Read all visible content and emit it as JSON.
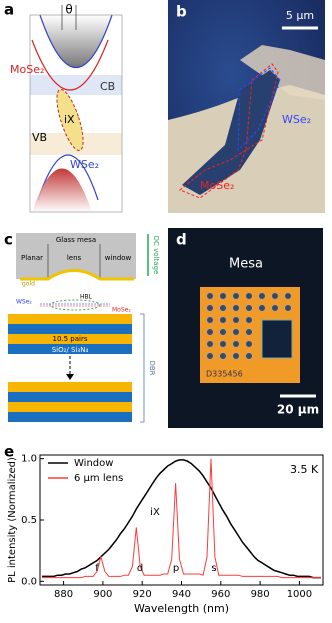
{
  "panels": {
    "a": {
      "letter": "a",
      "angle": "θ",
      "top_material": "MoSe₂",
      "cb": "CB",
      "ix": "iX",
      "vb": "VB",
      "bottom_material": "WSe₂"
    },
    "b": {
      "letter": "b",
      "scale": "5 μm",
      "wse2": "WSe₂",
      "mose2": "MoSe₂"
    },
    "c": {
      "letter": "c",
      "mesa": "Glass mesa",
      "planar": "Planar",
      "lens": "lens",
      "window": "window",
      "voltage": "DC voltage",
      "gold": "gold",
      "hbl": "HBL",
      "wse2": "WSe₂",
      "mose2": "MoSe₂",
      "pairs": "10.5 pairs",
      "layers": "SiO₂/ Si₃N₄",
      "dbr": "DBR"
    },
    "d": {
      "letter": "d",
      "title": "Mesa",
      "code": "D335456",
      "scale": "20 μm"
    },
    "e": {
      "letter": "e"
    }
  },
  "chart_data": {
    "type": "line",
    "temperature": "3.5 K",
    "peak_labels": [
      "f",
      "d",
      "p",
      "s",
      "iX"
    ],
    "x_label": "Wavelength (nm)",
    "y_label": "PL intensity (Normalized)",
    "xlim": [
      868,
      1012
    ],
    "xticks": [
      880,
      900,
      920,
      940,
      960,
      980,
      1000
    ],
    "ylim": [
      -0.03,
      1.03
    ],
    "yticks": [
      {
        "value": 0,
        "label": "0.0"
      },
      {
        "value": 0.5,
        "label": "0.5"
      },
      {
        "value": 1,
        "label": "1.0"
      }
    ],
    "x": [
      869,
      871,
      873,
      875,
      877,
      879,
      881,
      883,
      885,
      887,
      889,
      891,
      893,
      895,
      897,
      899,
      901,
      903,
      905,
      907,
      909,
      911,
      913,
      915,
      917,
      919,
      921,
      923,
      925,
      927,
      929,
      931,
      933,
      935,
      937,
      939,
      941,
      943,
      945,
      947,
      949,
      951,
      953,
      955,
      957,
      959,
      961,
      963,
      965,
      967,
      969,
      971,
      973,
      975,
      977,
      979,
      981,
      983,
      985,
      987,
      989,
      991,
      993,
      995,
      997,
      999,
      1001,
      1003,
      1005,
      1007,
      1009,
      1011
    ],
    "series": [
      {
        "name": "Window",
        "color": "#000000",
        "values": [
          0.04,
          0.04,
          0.04,
          0.04,
          0.05,
          0.05,
          0.06,
          0.06,
          0.07,
          0.08,
          0.1,
          0.11,
          0.13,
          0.15,
          0.17,
          0.2,
          0.23,
          0.26,
          0.3,
          0.34,
          0.39,
          0.43,
          0.48,
          0.53,
          0.59,
          0.64,
          0.69,
          0.74,
          0.79,
          0.84,
          0.88,
          0.91,
          0.94,
          0.96,
          0.98,
          0.99,
          0.99,
          0.98,
          0.96,
          0.93,
          0.9,
          0.86,
          0.81,
          0.76,
          0.7,
          0.64,
          0.58,
          0.53,
          0.47,
          0.42,
          0.37,
          0.32,
          0.28,
          0.24,
          0.2,
          0.17,
          0.15,
          0.13,
          0.11,
          0.09,
          0.08,
          0.07,
          0.06,
          0.05,
          0.05,
          0.04,
          0.04,
          0.04,
          0.04,
          0.03,
          0.03,
          0.03
        ]
      },
      {
        "name": "6 μm lens",
        "color": "#ff3b3b",
        "values": [
          0.03,
          0.03,
          0.03,
          0.03,
          0.03,
          0.03,
          0.03,
          0.03,
          0.03,
          0.03,
          0.03,
          0.04,
          0.04,
          0.04,
          0.08,
          0.2,
          0.08,
          0.04,
          0.04,
          0.04,
          0.04,
          0.05,
          0.05,
          0.12,
          0.44,
          0.12,
          0.05,
          0.05,
          0.05,
          0.05,
          0.05,
          0.06,
          0.06,
          0.18,
          0.8,
          0.18,
          0.06,
          0.06,
          0.06,
          0.06,
          0.06,
          0.05,
          0.2,
          1.0,
          0.2,
          0.05,
          0.05,
          0.05,
          0.05,
          0.05,
          0.05,
          0.04,
          0.04,
          0.04,
          0.04,
          0.04,
          0.04,
          0.04,
          0.04,
          0.04,
          0.04,
          0.03,
          0.03,
          0.03,
          0.03,
          0.03,
          0.03,
          0.03,
          0.03,
          0.03,
          0.03,
          0.03
        ]
      }
    ]
  }
}
